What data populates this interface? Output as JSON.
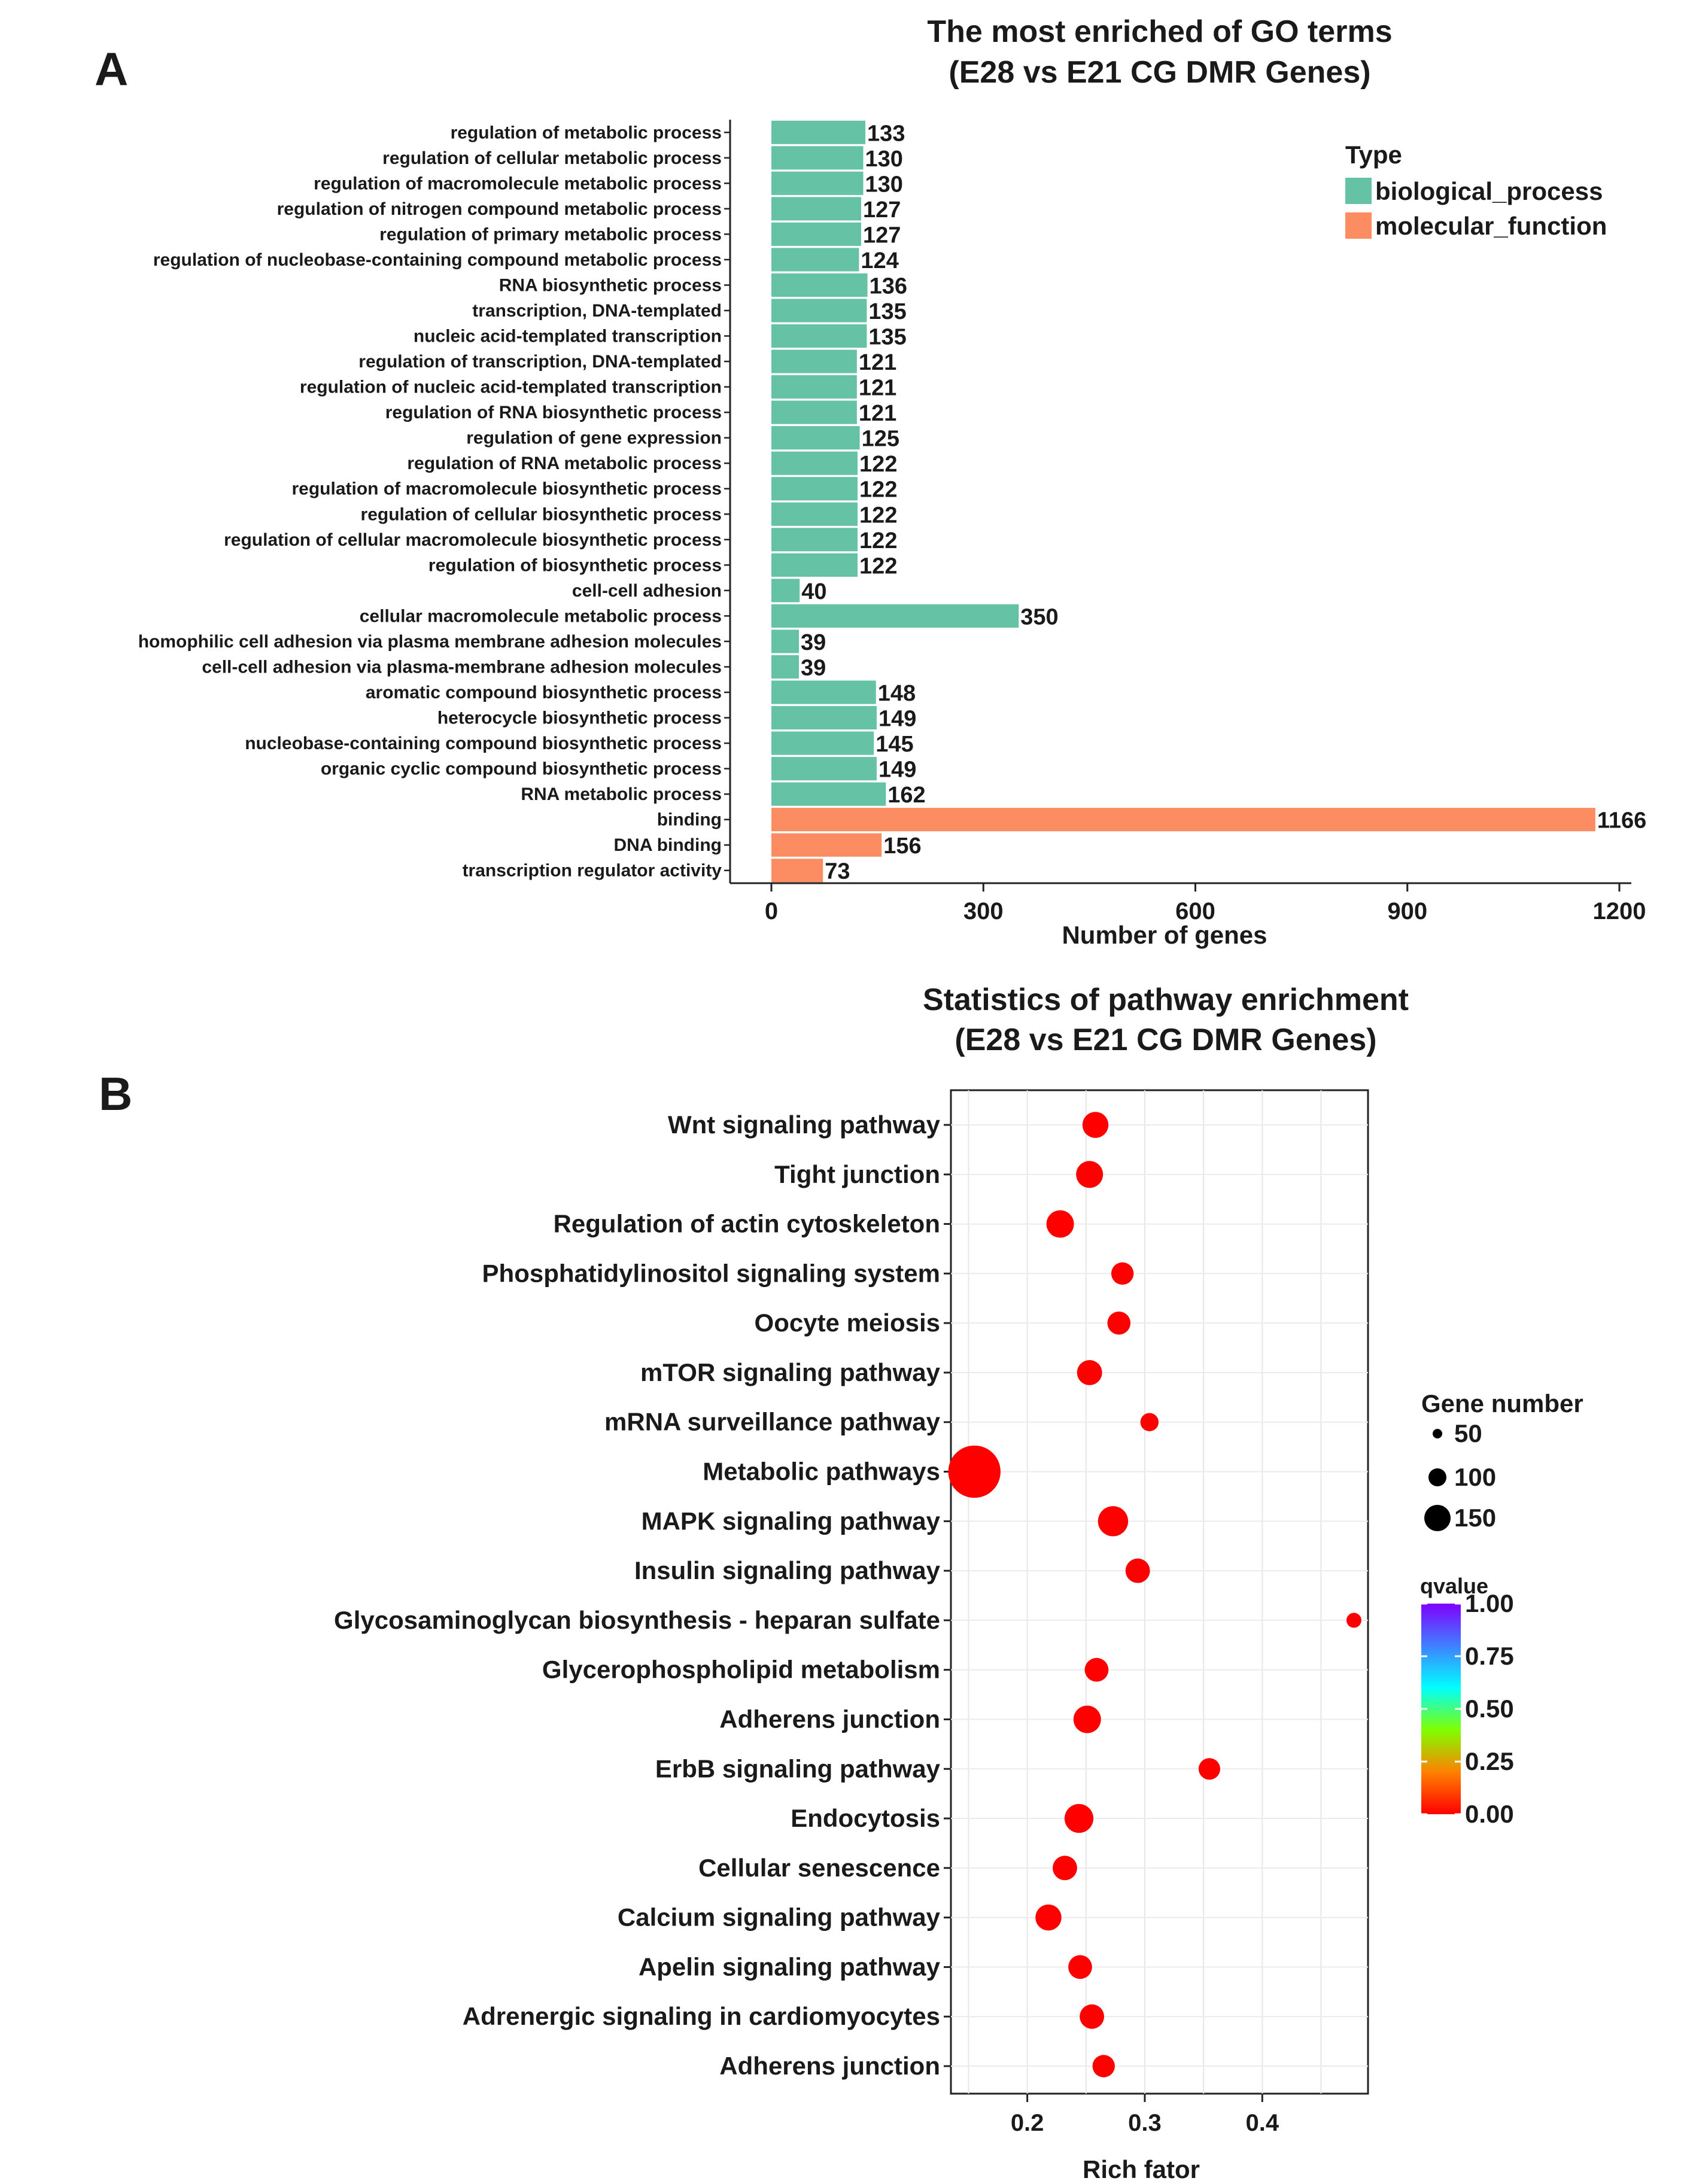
{
  "figure": {
    "panel_a_letter": "A",
    "panel_b_letter": "B"
  },
  "chart_data": [
    {
      "type": "bar",
      "orientation": "horizontal",
      "title": "The most enriched of GO terms",
      "subtitle": "(E28 vs E21 CG DMR Genes)",
      "xlabel": "Number of genes",
      "ylabel": "",
      "xlim": [
        0,
        1200
      ],
      "xticks": [
        0,
        300,
        600,
        900,
        1200
      ],
      "legend": {
        "title": "Type",
        "position": "top-right",
        "items": [
          {
            "name": "biological_process",
            "color": "#66C2A5"
          },
          {
            "name": "molecular_function",
            "color": "#FC8D62"
          }
        ]
      },
      "categories": [
        "regulation of metabolic process",
        "regulation of cellular metabolic process",
        "regulation of macromolecule metabolic process",
        "regulation of nitrogen compound metabolic process",
        "regulation of primary metabolic process",
        "regulation of nucleobase-containing compound metabolic process",
        "RNA biosynthetic process",
        "transcription, DNA-templated",
        "nucleic acid-templated transcription",
        "regulation of transcription, DNA-templated",
        "regulation of nucleic acid-templated transcription",
        "regulation of RNA biosynthetic process",
        "regulation of gene expression",
        "regulation of RNA metabolic process",
        "regulation of macromolecule biosynthetic process",
        "regulation of cellular biosynthetic process",
        "regulation of cellular macromolecule biosynthetic process",
        "regulation of biosynthetic process",
        "cell-cell adhesion",
        "cellular macromolecule metabolic process",
        "homophilic cell adhesion via plasma membrane adhesion molecules",
        "cell-cell adhesion via plasma-membrane adhesion molecules",
        "aromatic compound biosynthetic process",
        "heterocycle biosynthetic process",
        "nucleobase-containing compound biosynthetic process",
        "organic cyclic compound biosynthetic process",
        "RNA metabolic process",
        "binding",
        "DNA binding",
        "transcription regulator activity"
      ],
      "values": [
        133,
        130,
        130,
        127,
        127,
        124,
        136,
        135,
        135,
        121,
        121,
        121,
        125,
        122,
        122,
        122,
        122,
        122,
        40,
        350,
        39,
        39,
        148,
        149,
        145,
        149,
        162,
        1166,
        156,
        73
      ],
      "types": [
        "biological_process",
        "biological_process",
        "biological_process",
        "biological_process",
        "biological_process",
        "biological_process",
        "biological_process",
        "biological_process",
        "biological_process",
        "biological_process",
        "biological_process",
        "biological_process",
        "biological_process",
        "biological_process",
        "biological_process",
        "biological_process",
        "biological_process",
        "biological_process",
        "biological_process",
        "biological_process",
        "biological_process",
        "biological_process",
        "biological_process",
        "biological_process",
        "biological_process",
        "biological_process",
        "biological_process",
        "molecular_function",
        "molecular_function",
        "molecular_function"
      ]
    },
    {
      "type": "scatter",
      "title": "Statistics of pathway enrichment",
      "subtitle": "(E28 vs E21 CG DMR Genes)",
      "xlabel": "Rich fator",
      "ylabel": "",
      "xlim": [
        0.135,
        0.49
      ],
      "xticks": [
        0.2,
        0.3,
        0.4
      ],
      "xtick_labels": [
        "0.2",
        "0.3",
        "0.4"
      ],
      "grid": true,
      "size_legend": {
        "title": "Gene number",
        "values": [
          50,
          100,
          150
        ],
        "labels": [
          "50",
          "100",
          "150"
        ]
      },
      "color_legend": {
        "title": "qvalue",
        "range": [
          0,
          1
        ],
        "ticks": [
          "1.00",
          "0.75",
          "0.50",
          "0.25",
          "0.00"
        ],
        "colors": [
          "#FF0000",
          "#FF8000",
          "#80FF00",
          "#00FFFF",
          "#4080FF",
          "#8000FF"
        ]
      },
      "categories": [
        "Wnt signaling pathway",
        "Tight junction",
        "Regulation of actin cytoskeleton",
        "Phosphatidylinositol signaling system",
        "Oocyte meiosis",
        "mTOR signaling pathway",
        "mRNA surveillance pathway",
        "Metabolic pathways",
        "MAPK signaling pathway",
        "Insulin signaling pathway",
        "Glycosaminoglycan biosynthesis - heparan sulfate",
        "Glycerophospholipid metabolism",
        "Adherens junction",
        "ErbB signaling pathway",
        "Endocytosis",
        "Cellular senescence",
        "Calcium signaling pathway",
        "Apelin signaling pathway",
        "Adrenergic signaling in cardiomyocytes",
        "Adherens junction"
      ],
      "x": [
        0.258,
        0.253,
        0.228,
        0.281,
        0.278,
        0.253,
        0.304,
        0.155,
        0.273,
        0.294,
        0.478,
        0.259,
        0.251,
        0.355,
        0.244,
        0.232,
        0.218,
        0.245,
        0.255,
        0.265
      ],
      "gene_number": [
        35,
        38,
        40,
        24,
        26,
        32,
        14,
        175,
        50,
        30,
        8,
        28,
        40,
        22,
        45,
        30,
        35,
        28,
        30,
        24
      ],
      "qvalue": [
        0,
        0,
        0,
        0,
        0,
        0,
        0,
        0,
        0,
        0,
        0,
        0,
        0,
        0,
        0,
        0,
        0,
        0,
        0,
        0
      ],
      "point_color": "#FF0000"
    }
  ]
}
